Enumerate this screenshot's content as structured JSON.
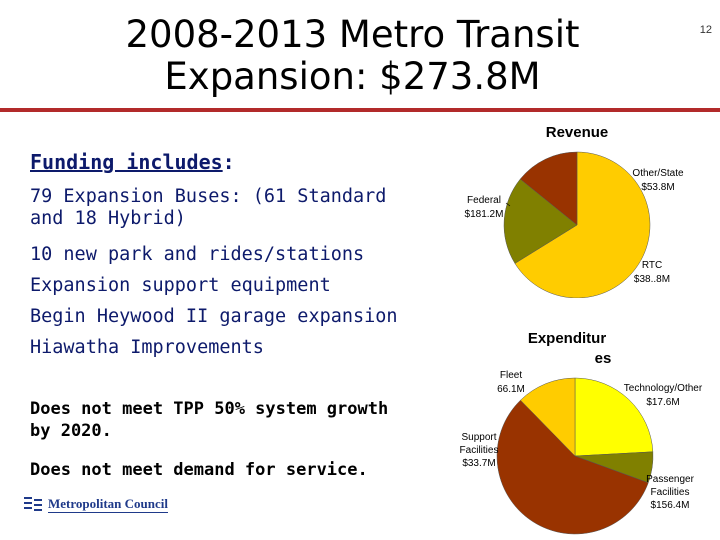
{
  "page_number": "12",
  "title_line1": "2008-2013 Metro Transit",
  "title_line2": "Expansion: $273.8M",
  "funding_heading_underlined": "Funding includes",
  "funding_heading_colon": ":",
  "funding_items": [
    "79 Expansion Buses: (61 Standard and 18 Hybrid)",
    "10 new park and rides/stations",
    "Expansion support equipment",
    "Begin Heywood II garage expansion",
    "Hiawatha Improvements"
  ],
  "note1": "Does not meet TPP 50% system growth by 2020.",
  "note2": "Does not meet demand for service.",
  "logo_text": "Metropolitan Council",
  "colors": {
    "title_rule": "#b22a2a",
    "body_text": "#0d1a6b"
  },
  "chart_data": [
    {
      "type": "pie",
      "title": "Revenue",
      "slices": [
        {
          "label_line1": "Federal",
          "label_line2": "$181.2M",
          "value": 181.2,
          "color": "#ffcc00"
        },
        {
          "label_line1": "Other/State",
          "label_line2": "$53.8M",
          "value": 53.8,
          "color": "#808000"
        },
        {
          "label_line1": "RTC",
          "label_line2": "$38..8M",
          "value": 38.8,
          "color": "#993300"
        }
      ]
    },
    {
      "type": "pie",
      "title_line1": "Expenditur",
      "title_line2": "es",
      "slices": [
        {
          "label_line1": "Fleet",
          "label_line2": "66.1M",
          "value": 66.1,
          "color": "#ffff00"
        },
        {
          "label_line1": "Technology/Other",
          "label_line2": "$17.6M",
          "value": 17.6,
          "color": "#808000"
        },
        {
          "label_line1": "Passenger",
          "label_line2": "Facilities",
          "label_line3": "$156.4M",
          "value": 156.4,
          "color": "#993300"
        },
        {
          "label_line1": "Support",
          "label_line2": "Facilities",
          "label_line3": "$33.7M",
          "value": 33.7,
          "color": "#ffcc00"
        }
      ]
    }
  ]
}
